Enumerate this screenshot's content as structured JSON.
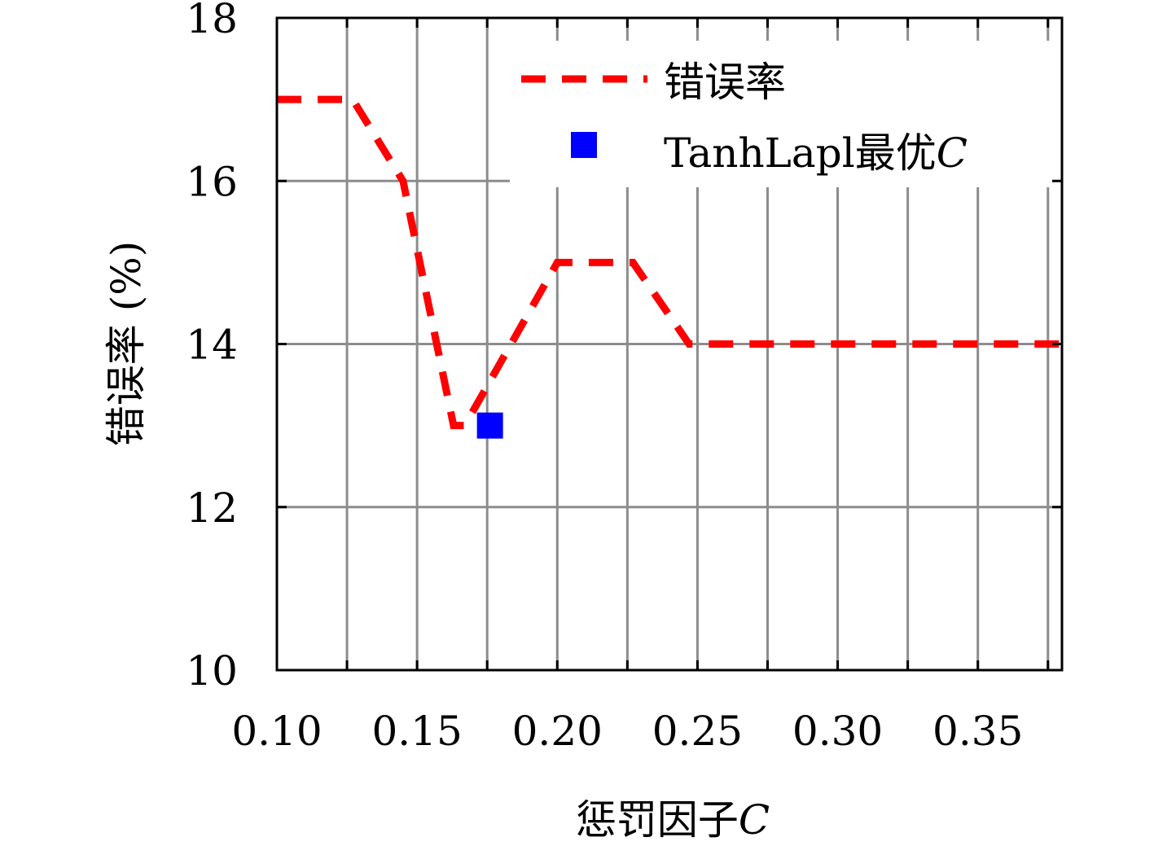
{
  "chart_data": {
    "type": "line",
    "xlabel": "惩罚因子",
    "xlabel_var": "C",
    "ylabel": "错误率 (%)",
    "xlim": [
      0.1,
      0.38
    ],
    "ylim": [
      10,
      18
    ],
    "xticks": [
      0.1,
      0.15,
      0.2,
      0.25,
      0.3,
      0.35
    ],
    "xtick_labels": [
      "0.10",
      "0.15",
      "0.20",
      "0.25",
      "0.30",
      "0.35"
    ],
    "yticks": [
      10,
      12,
      14,
      16,
      18
    ],
    "ytick_labels": [
      "10",
      "12",
      "14",
      "16",
      "18"
    ],
    "grid": true,
    "legend_position": "top-right",
    "series": [
      {
        "name": "错误率",
        "style": "dashed",
        "color": "#ff0000",
        "x": [
          0.1,
          0.127,
          0.145,
          0.163,
          0.167,
          0.2,
          0.21,
          0.218,
          0.227,
          0.247,
          0.38
        ],
        "y": [
          17.0,
          17.0,
          16.0,
          13.0,
          13.0,
          15.0,
          15.0,
          15.0,
          15.0,
          14.0,
          14.0
        ]
      }
    ],
    "markers": [
      {
        "name": "TanhLapl最优",
        "name_var": "C",
        "color": "#0000ff",
        "shape": "square",
        "x": 0.176,
        "y": 13.0
      }
    ]
  }
}
